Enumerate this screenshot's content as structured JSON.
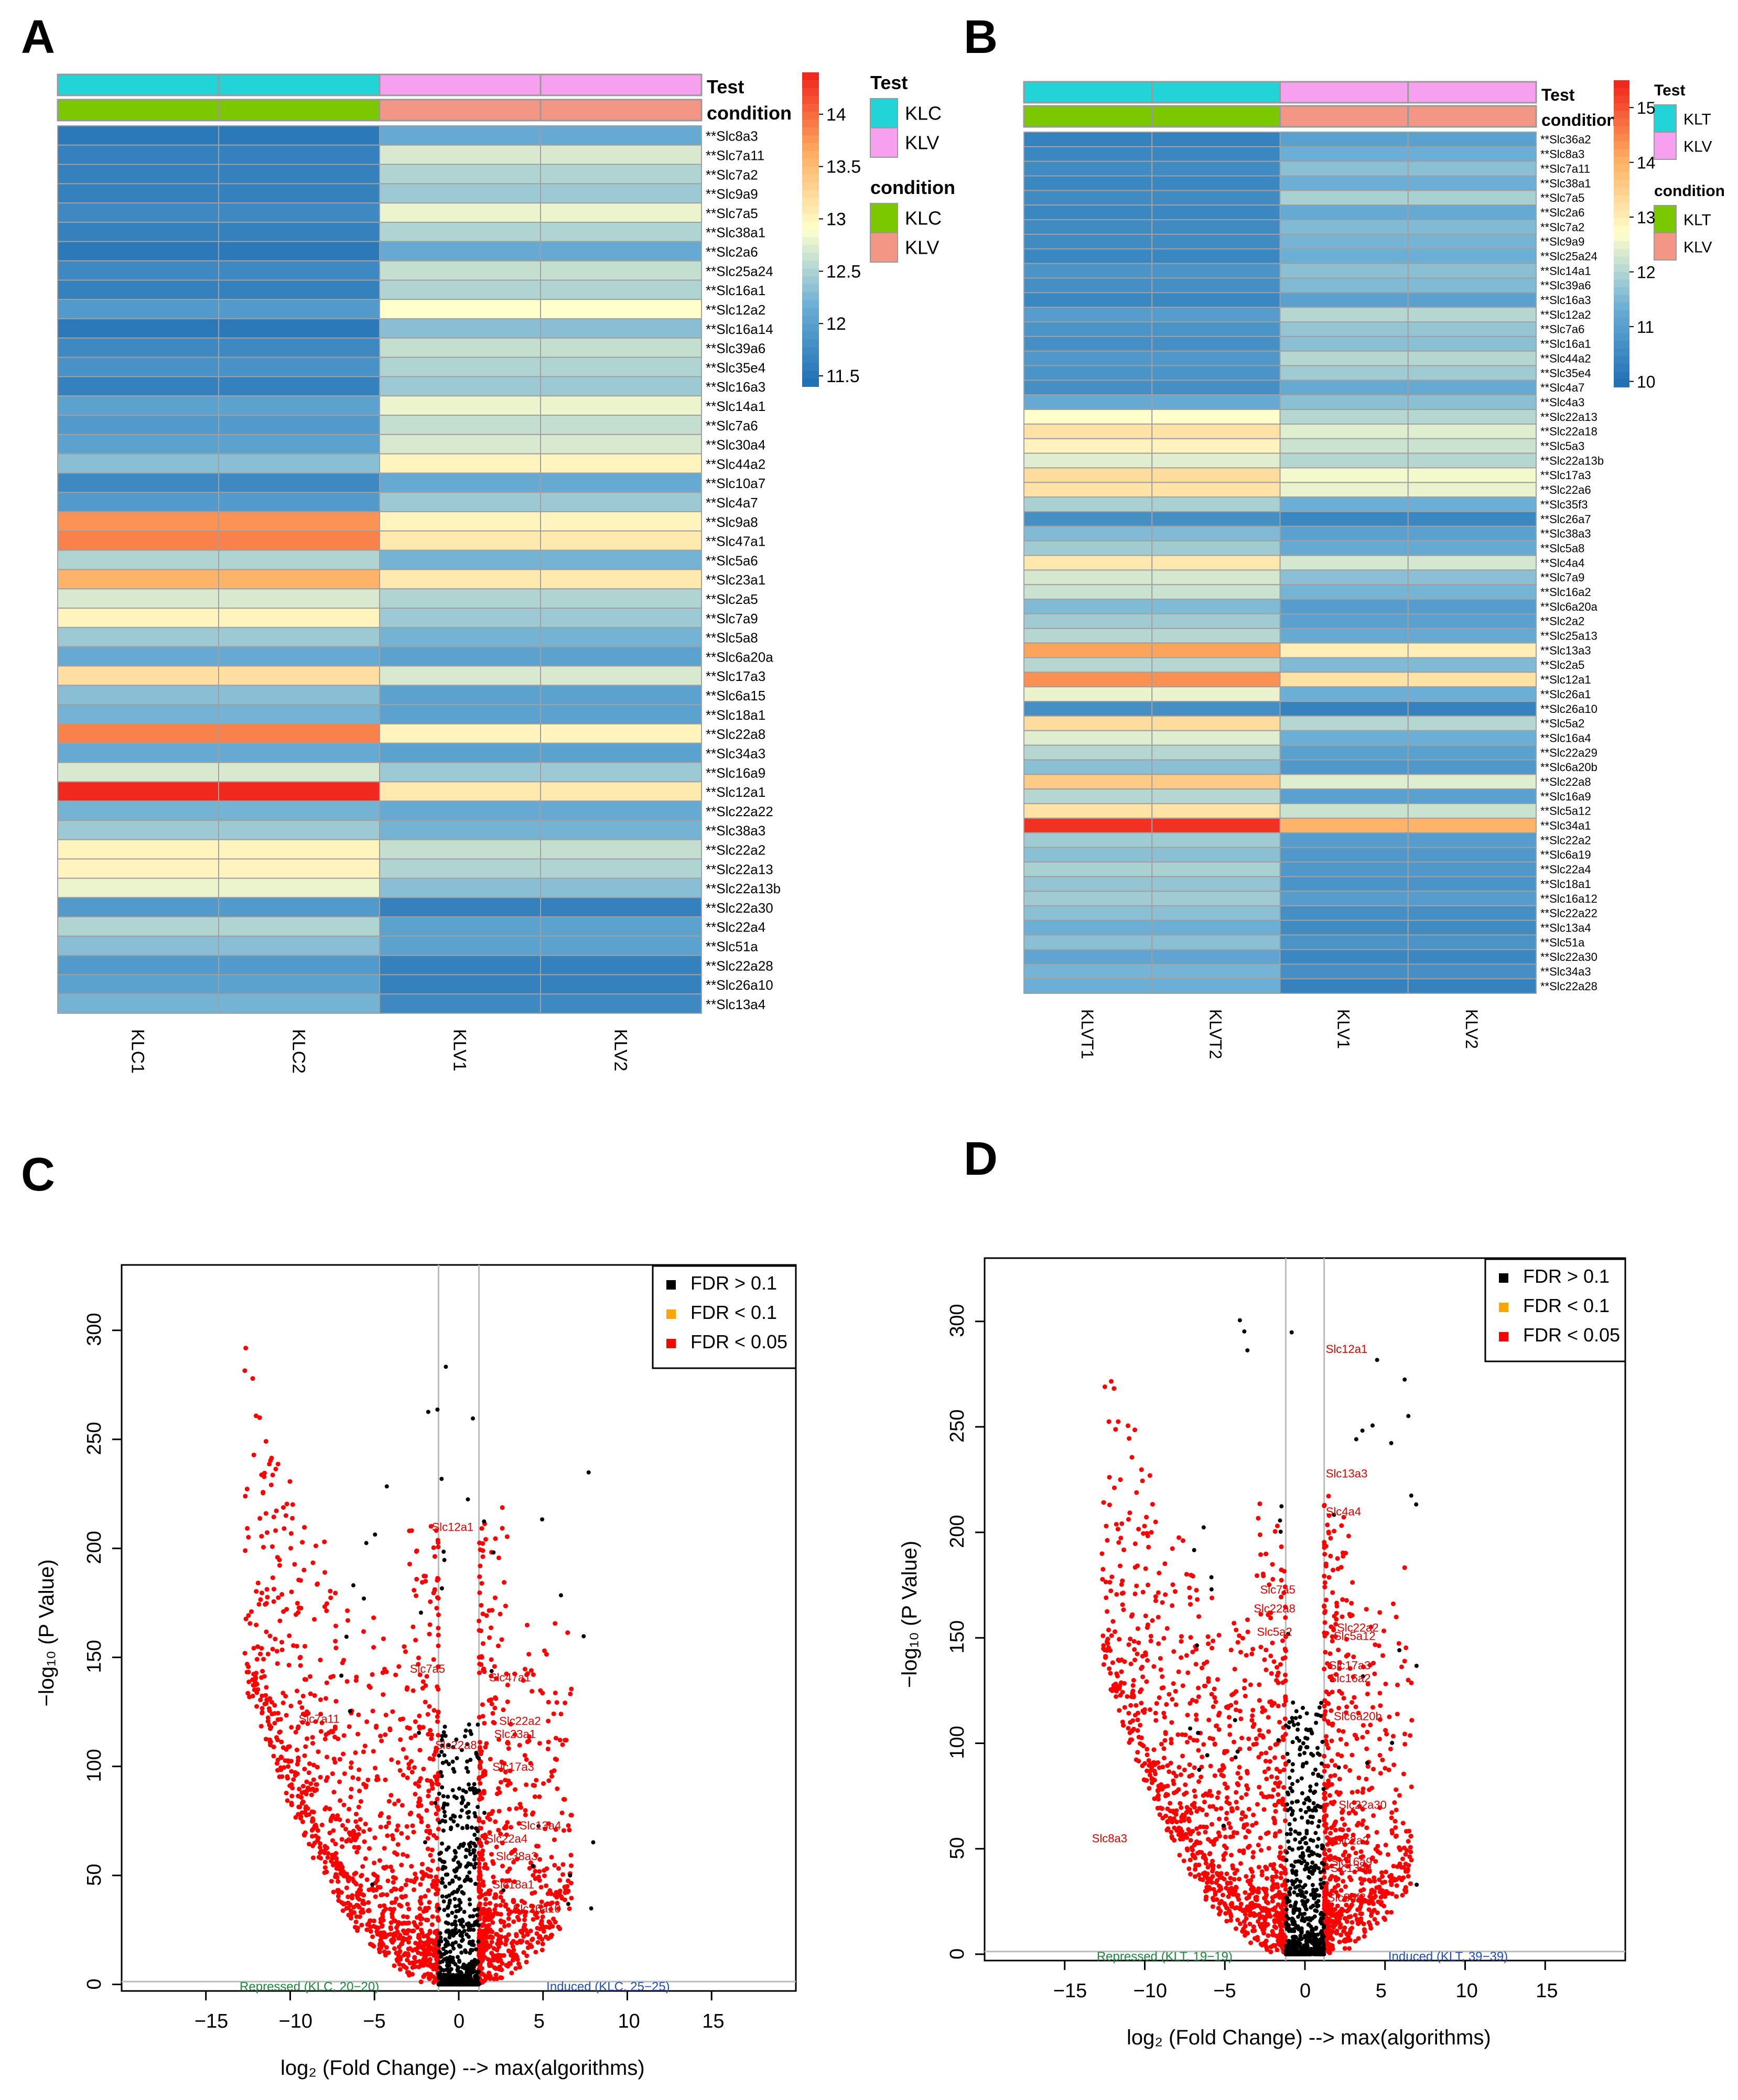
{
  "panels": {
    "a": "A",
    "b": "B",
    "c": "C",
    "d": "D"
  },
  "colors": {
    "kl_cyan": "#22D3D8",
    "klv_pink": "#F7A0F0",
    "cond_green": "#7BC800",
    "cond_salmon": "#F49686",
    "red_point": "#FF0000"
  },
  "chart_data": [
    {
      "type": "heatmap",
      "panel": "A",
      "columns": [
        "KLC1",
        "KLC2",
        "KLV1",
        "KLV2"
      ],
      "annotation_rows": [
        "Test",
        "condition"
      ],
      "column_test": [
        "KLC",
        "KLC",
        "KLV",
        "KLV"
      ],
      "column_condition": [
        "KLC",
        "KLC",
        "KLV",
        "KLV"
      ],
      "legend": {
        "test_title": "Test",
        "test_entries": [
          "KLC",
          "KLV"
        ],
        "condition_title": "condition",
        "condition_entries": [
          "KLC",
          "KLV"
        ],
        "color_scale_ticks": [
          "14",
          "13.5",
          "13",
          "12.5",
          "12",
          "11.5"
        ],
        "range": [
          11.4,
          14.4
        ]
      },
      "rows": [
        "**Slc8a3",
        "**Slc7a11",
        "**Slc7a2",
        "**Slc9a9",
        "**Slc7a5",
        "**Slc38a1",
        "**Slc2a6",
        "**Slc25a24",
        "**Slc16a1",
        "**Slc12a2",
        "**Slc16a14",
        "**Slc39a6",
        "**Slc35e4",
        "**Slc16a3",
        "**Slc14a1",
        "**Slc7a6",
        "**Slc30a4",
        "**Slc44a2",
        "**Slc10a7",
        "**Slc4a7",
        "**Slc9a8",
        "**Slc47a1",
        "**Slc5a6",
        "**Slc23a1",
        "**Slc2a5",
        "**Slc7a9",
        "**Slc5a8",
        "**Slc6a20a",
        "**Slc17a3",
        "**Slc6a15",
        "**Slc18a1",
        "**Slc22a8",
        "**Slc34a3",
        "**Slc16a9",
        "**Slc12a1",
        "**Slc22a22",
        "**Slc38a3",
        "**Slc22a2",
        "**Slc22a13",
        "**Slc22a13b",
        "**Slc22a30",
        "**Slc22a4",
        "**Slc51a",
        "**Slc22a28",
        "**Slc26a10",
        "**Slc13a4"
      ],
      "values": [
        [
          11.5,
          11.5,
          12.1,
          12.1
        ],
        [
          11.6,
          11.6,
          12.7,
          12.7
        ],
        [
          11.6,
          11.6,
          12.5,
          12.5
        ],
        [
          11.6,
          11.6,
          12.4,
          12.4
        ],
        [
          11.7,
          11.7,
          12.8,
          12.8
        ],
        [
          11.6,
          11.6,
          12.5,
          12.5
        ],
        [
          11.5,
          11.5,
          12.1,
          12.1
        ],
        [
          11.7,
          11.7,
          12.6,
          12.6
        ],
        [
          11.6,
          11.6,
          12.5,
          12.5
        ],
        [
          11.9,
          11.9,
          12.9,
          12.9
        ],
        [
          11.5,
          11.5,
          12.3,
          12.3
        ],
        [
          11.7,
          11.7,
          12.6,
          12.6
        ],
        [
          11.8,
          11.8,
          12.5,
          12.5
        ],
        [
          11.6,
          11.6,
          12.4,
          12.4
        ],
        [
          12.0,
          12.0,
          12.8,
          12.8
        ],
        [
          11.9,
          11.9,
          12.6,
          12.6
        ],
        [
          12.0,
          12.0,
          12.7,
          12.7
        ],
        [
          12.3,
          12.3,
          13.0,
          13.0
        ],
        [
          11.7,
          11.7,
          12.1,
          12.1
        ],
        [
          11.9,
          11.9,
          12.4,
          12.4
        ],
        [
          13.8,
          13.8,
          13.0,
          13.0
        ],
        [
          13.9,
          13.9,
          13.1,
          13.1
        ],
        [
          12.5,
          12.5,
          12.2,
          12.2
        ],
        [
          13.6,
          13.6,
          13.1,
          13.1
        ],
        [
          12.7,
          12.7,
          12.5,
          12.5
        ],
        [
          13.0,
          13.0,
          12.4,
          12.4
        ],
        [
          12.4,
          12.4,
          12.2,
          12.2
        ],
        [
          12.1,
          12.1,
          12.0,
          12.0
        ],
        [
          13.2,
          13.2,
          12.7,
          12.7
        ],
        [
          12.3,
          12.3,
          12.0,
          12.0
        ],
        [
          12.2,
          12.2,
          12.0,
          12.0
        ],
        [
          13.9,
          13.9,
          13.0,
          13.0
        ],
        [
          12.1,
          12.1,
          12.0,
          12.0
        ],
        [
          12.7,
          12.7,
          12.4,
          12.4
        ],
        [
          14.4,
          14.4,
          13.1,
          13.1
        ],
        [
          12.2,
          12.2,
          12.1,
          12.1
        ],
        [
          12.4,
          12.4,
          12.2,
          12.2
        ],
        [
          13.0,
          13.0,
          12.6,
          12.6
        ],
        [
          13.0,
          13.0,
          12.5,
          12.5
        ],
        [
          12.8,
          12.8,
          12.3,
          12.3
        ],
        [
          11.9,
          11.9,
          11.6,
          11.6
        ],
        [
          12.5,
          12.5,
          12.0,
          12.0
        ],
        [
          12.3,
          12.3,
          12.0,
          12.0
        ],
        [
          11.9,
          11.9,
          11.6,
          11.6
        ],
        [
          12.0,
          12.0,
          11.6,
          11.6
        ],
        [
          12.2,
          12.2,
          11.7,
          11.7
        ]
      ]
    },
    {
      "type": "heatmap",
      "panel": "B",
      "columns": [
        "KLVT1",
        "KLVT2",
        "KLV1",
        "KLV2"
      ],
      "annotation_rows": [
        "Test",
        "condition"
      ],
      "column_test": [
        "KLT",
        "KLT",
        "KLV",
        "KLV"
      ],
      "column_condition": [
        "KLT",
        "KLT",
        "KLV",
        "KLV"
      ],
      "legend": {
        "test_title": "Test",
        "test_entries": [
          "KLT",
          "KLV"
        ],
        "condition_title": "condition",
        "condition_entries": [
          "KLT",
          "KLV"
        ],
        "color_scale_ticks": [
          "15",
          "14",
          "13",
          "12",
          "11",
          "10"
        ],
        "range": [
          9.9,
          15.5
        ]
      },
      "rows": [
        "**Slc36a2",
        "**Slc8a3",
        "**Slc7a11",
        "**Slc38a1",
        "**Slc7a5",
        "**Slc2a6",
        "**Slc7a2",
        "**Slc9a9",
        "**Slc25a24",
        "**Slc14a1",
        "**Slc39a6",
        "**Slc16a3",
        "**Slc12a2",
        "**Slc7a6",
        "**Slc16a1",
        "**Slc44a2",
        "**Slc35e4",
        "**Slc4a7",
        "**Slc4a3",
        "**Slc22a13",
        "**Slc22a18",
        "**Slc5a3",
        "**Slc22a13b",
        "**Slc17a3",
        "**Slc22a6",
        "**Slc35f3",
        "**Slc26a7",
        "**Slc38a3",
        "**Slc5a8",
        "**Slc4a4",
        "**Slc7a9",
        "**Slc16a2",
        "**Slc6a20a",
        "**Slc2a2",
        "**Slc25a13",
        "**Slc13a3",
        "**Slc2a5",
        "**Slc12a1",
        "**Slc26a1",
        "**Slc26a10",
        "**Slc5a2",
        "**Slc16a4",
        "**Slc22a29",
        "**Slc6a20b",
        "**Slc22a8",
        "**Slc16a9",
        "**Slc5a12",
        "**Slc34a1",
        "**Slc22a2",
        "**Slc6a19",
        "**Slc22a4",
        "**Slc18a1",
        "**Slc16a12",
        "**Slc22a22",
        "**Slc13a4",
        "**Slc51a",
        "**Slc22a30",
        "**Slc34a3",
        "**Slc22a28"
      ],
      "values": [
        [
          10.3,
          10.3,
          11.0,
          11.0
        ],
        [
          10.4,
          10.4,
          11.3,
          11.3
        ],
        [
          10.5,
          10.5,
          11.6,
          11.6
        ],
        [
          10.4,
          10.4,
          11.3,
          11.3
        ],
        [
          10.5,
          10.5,
          11.9,
          11.9
        ],
        [
          10.4,
          10.4,
          11.2,
          11.2
        ],
        [
          10.5,
          10.5,
          11.5,
          11.5
        ],
        [
          10.5,
          10.5,
          11.4,
          11.4
        ],
        [
          10.4,
          10.4,
          11.3,
          11.3
        ],
        [
          10.7,
          10.7,
          11.6,
          11.6
        ],
        [
          10.6,
          10.6,
          11.5,
          11.5
        ],
        [
          10.4,
          10.4,
          11.0,
          11.0
        ],
        [
          10.9,
          10.9,
          12.0,
          12.0
        ],
        [
          10.7,
          10.7,
          11.7,
          11.7
        ],
        [
          10.6,
          10.6,
          11.6,
          11.6
        ],
        [
          10.8,
          10.8,
          12.0,
          12.0
        ],
        [
          10.7,
          10.7,
          11.8,
          11.8
        ],
        [
          10.6,
          10.6,
          11.2,
          11.2
        ],
        [
          11.2,
          11.2,
          11.6,
          11.6
        ],
        [
          12.7,
          12.7,
          12.0,
          12.0
        ],
        [
          13.2,
          13.2,
          12.4,
          12.4
        ],
        [
          12.9,
          12.9,
          12.2,
          12.2
        ],
        [
          12.4,
          12.4,
          12.0,
          12.0
        ],
        [
          13.3,
          13.3,
          12.6,
          12.6
        ],
        [
          13.2,
          13.2,
          12.5,
          12.5
        ],
        [
          11.9,
          11.9,
          11.3,
          11.3
        ],
        [
          10.6,
          10.6,
          10.4,
          10.4
        ],
        [
          11.5,
          11.5,
          11.0,
          11.0
        ],
        [
          11.8,
          11.8,
          11.2,
          11.2
        ],
        [
          13.1,
          13.1,
          12.3,
          12.3
        ],
        [
          12.3,
          12.3,
          11.6,
          11.6
        ],
        [
          12.2,
          12.2,
          11.4,
          11.4
        ],
        [
          11.5,
          11.5,
          10.9,
          10.9
        ],
        [
          11.8,
          11.8,
          11.0,
          11.0
        ],
        [
          12.0,
          12.0,
          11.2,
          11.2
        ],
        [
          14.2,
          14.2,
          13.0,
          13.0
        ],
        [
          12.0,
          12.0,
          11.5,
          11.5
        ],
        [
          14.4,
          14.4,
          13.2,
          13.2
        ],
        [
          12.5,
          12.5,
          11.3,
          11.3
        ],
        [
          10.6,
          10.6,
          10.3,
          10.3
        ],
        [
          13.3,
          13.3,
          12.0,
          12.0
        ],
        [
          12.4,
          12.4,
          11.3,
          11.3
        ],
        [
          12.0,
          12.0,
          11.0,
          11.0
        ],
        [
          11.6,
          11.6,
          10.8,
          10.8
        ],
        [
          13.6,
          13.6,
          12.4,
          12.4
        ],
        [
          12.0,
          12.0,
          11.0,
          11.0
        ],
        [
          13.2,
          13.2,
          12.2,
          12.2
        ],
        [
          15.4,
          15.4,
          14.0,
          14.0
        ],
        [
          11.8,
          11.8,
          10.9,
          10.9
        ],
        [
          11.6,
          11.6,
          10.8,
          10.8
        ],
        [
          11.9,
          11.9,
          10.8,
          10.8
        ],
        [
          11.7,
          11.7,
          10.7,
          10.7
        ],
        [
          11.8,
          11.8,
          10.9,
          10.9
        ],
        [
          11.6,
          11.6,
          10.6,
          10.6
        ],
        [
          11.3,
          11.3,
          10.5,
          10.5
        ],
        [
          11.6,
          11.6,
          10.7,
          10.7
        ],
        [
          11.1,
          11.1,
          10.4,
          10.4
        ],
        [
          11.4,
          11.4,
          10.6,
          10.6
        ],
        [
          11.3,
          11.3,
          10.3,
          10.3
        ]
      ]
    },
    {
      "type": "scatter",
      "panel": "C",
      "xlabel": "log₂ (Fold Change)  --> max(algorithms)",
      "ylabel": "−log₁₀ (P Value)",
      "xlim": [
        -20,
        20
      ],
      "ylim": [
        -3,
        330
      ],
      "xticks": [
        -15,
        -10,
        -5,
        0,
        5,
        10,
        15
      ],
      "yticks": [
        0,
        50,
        100,
        150,
        200,
        250,
        300
      ],
      "vlines": [
        -1.2,
        1.2
      ],
      "hline": 1.3,
      "legend_entries": [
        "FDR > 0.1",
        "FDR < 0.1",
        "FDR < 0.05"
      ],
      "legend_colors": [
        "#000000",
        "#FFA500",
        "#FF0000"
      ],
      "repressed_label": "Repressed (KLC, 20−20)",
      "induced_label": "Induced (KLC, 25−25)",
      "labeled_genes": [
        {
          "name": "Slc12a1",
          "x": -1.6,
          "y": 208
        },
        {
          "name": "Slc7a11",
          "x": -9.5,
          "y": 120
        },
        {
          "name": "Slc7a5",
          "x": -2.9,
          "y": 143
        },
        {
          "name": "Slc47a1",
          "x": 1.8,
          "y": 139
        },
        {
          "name": "Slc22a2",
          "x": 2.4,
          "y": 119
        },
        {
          "name": "Slc23a1",
          "x": 2.1,
          "y": 113
        },
        {
          "name": "Slc17a3",
          "x": 2.0,
          "y": 98
        },
        {
          "name": "Slc22a8",
          "x": -1.4,
          "y": 108
        },
        {
          "name": "Slc13a4",
          "x": 3.6,
          "y": 71
        },
        {
          "name": "Slc22a4",
          "x": 1.6,
          "y": 65
        },
        {
          "name": "Slc38a3",
          "x": 2.2,
          "y": 57
        },
        {
          "name": "Slc18a1",
          "x": 2.0,
          "y": 44
        },
        {
          "name": "Slc26a10",
          "x": 3.2,
          "y": 33
        }
      ]
    },
    {
      "type": "scatter",
      "panel": "D",
      "xlabel": "log₂ (Fold Change)  --> max(algorithms)",
      "ylabel": "−log₁₀ (P Value)",
      "xlim": [
        -20,
        20
      ],
      "ylim": [
        -3,
        330
      ],
      "xticks": [
        -15,
        -10,
        -5,
        0,
        5,
        10,
        15
      ],
      "yticks": [
        0,
        50,
        100,
        150,
        200,
        250,
        300
      ],
      "vlines": [
        -1.2,
        1.2
      ],
      "hline": 1.3,
      "legend_entries": [
        "FDR > 0.1",
        "FDR < 0.1",
        "FDR < 0.05"
      ],
      "legend_colors": [
        "#000000",
        "#FFA500",
        "#FF0000"
      ],
      "repressed_label": "Repressed (KLT, 19−19)",
      "induced_label": "Induced (KLT, 39−39)",
      "labeled_genes": [
        {
          "name": "Slc12a1",
          "x": 1.3,
          "y": 285
        },
        {
          "name": "Slc13a3",
          "x": 1.3,
          "y": 226
        },
        {
          "name": "Slc4a4",
          "x": 1.3,
          "y": 208
        },
        {
          "name": "Slc7a5",
          "x": -2.8,
          "y": 171
        },
        {
          "name": "Slc22a8",
          "x": -3.2,
          "y": 162
        },
        {
          "name": "Slc22a2",
          "x": 2.0,
          "y": 153
        },
        {
          "name": "Slc5a12",
          "x": 1.8,
          "y": 149
        },
        {
          "name": "Slc5a2",
          "x": -3.0,
          "y": 151
        },
        {
          "name": "Slc17a3",
          "x": 1.5,
          "y": 135
        },
        {
          "name": "Slc16a2",
          "x": 1.5,
          "y": 129
        },
        {
          "name": "Slc6a20b",
          "x": 1.8,
          "y": 111
        },
        {
          "name": "Slc22a30",
          "x": 2.1,
          "y": 69
        },
        {
          "name": "Slc8a3",
          "x": -13.3,
          "y": 53
        },
        {
          "name": "Slc2a2",
          "x": 1.8,
          "y": 52
        },
        {
          "name": "Slc16a9",
          "x": 1.6,
          "y": 42
        },
        {
          "name": "Slc13a4",
          "x": 1.6,
          "y": 39
        },
        {
          "name": "Slc35f3",
          "x": 1.4,
          "y": 25
        }
      ]
    }
  ]
}
